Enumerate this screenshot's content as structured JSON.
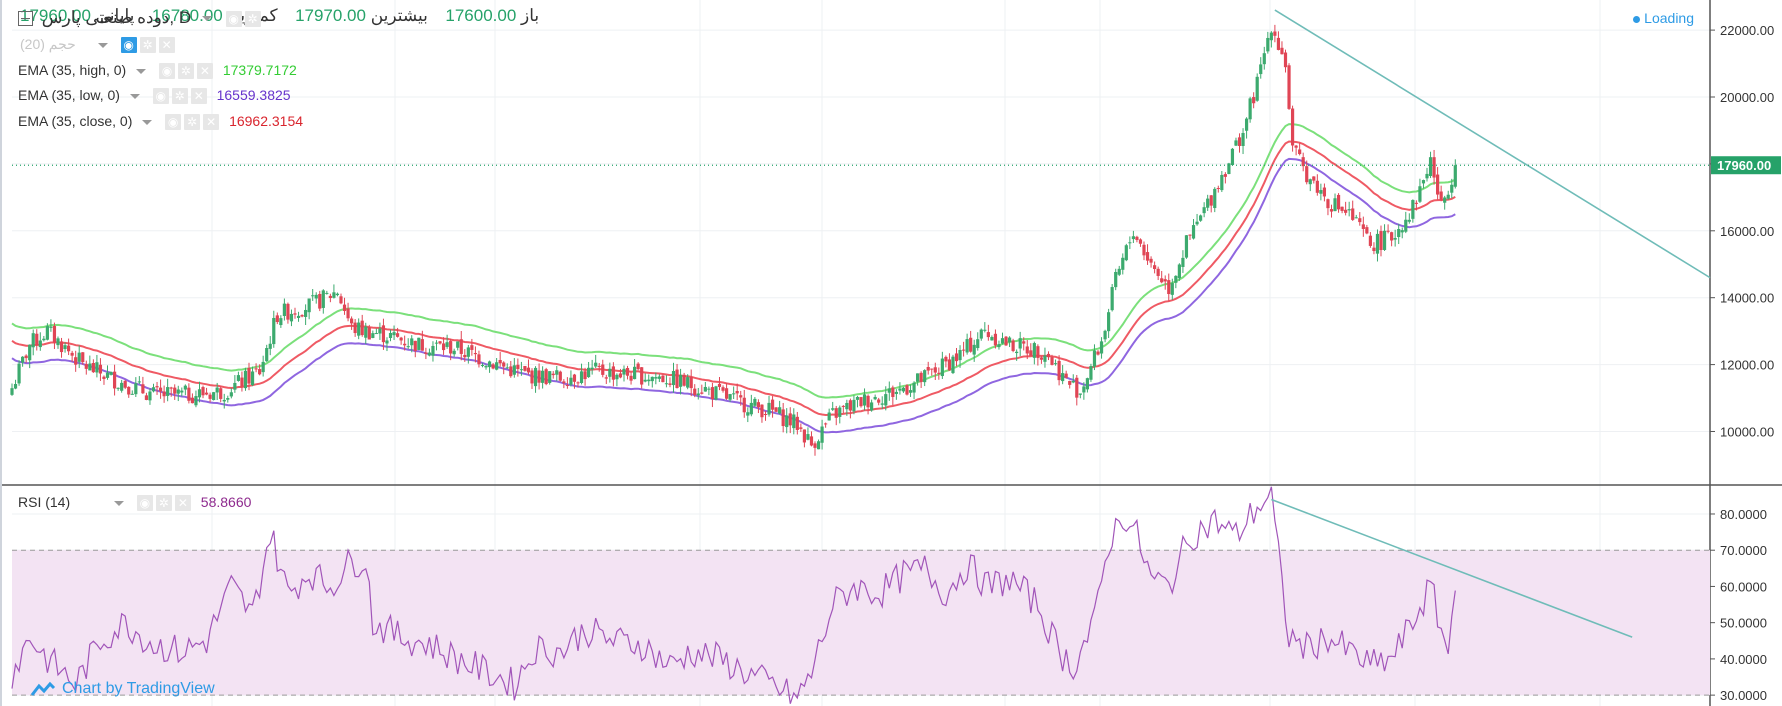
{
  "header": {
    "symbol": "دوده صنعتی پارس",
    "interval": "D",
    "open_label": "باز",
    "open": "17600.00",
    "high_label": "بیشترین",
    "high": "17970.00",
    "low_label": "کمترین",
    "low": "16780.00",
    "close_label": "پایانی",
    "close": "17960.00",
    "loading": "Loading"
  },
  "legends": {
    "volume": "حجم (20)",
    "ema_high": {
      "label": "EMA (35, high, 0)",
      "value": "17379.7172",
      "color": "#33cc33"
    },
    "ema_low": {
      "label": "EMA (35, low, 0)",
      "value": "16559.3825",
      "color": "#6633cc"
    },
    "ema_close": {
      "label": "EMA (35, close, 0)",
      "value": "16962.3154",
      "color": "#d9252e"
    },
    "rsi": {
      "label": "RSI (14)",
      "value": "58.8660",
      "color": "#8e2a8e"
    }
  },
  "credit": "Chart by TradingView",
  "colors": {
    "up": "#3caa6e",
    "down": "#e04555",
    "ema_high": "#7be07b",
    "ema_close": "#ef5a64",
    "ema_low": "#8f66e0",
    "rsi_line": "#a155b9",
    "rsi_band": "#f3e3f3",
    "trendline": "#6fbcb8",
    "price_line": "#26a269"
  },
  "chart_data": [
    {
      "type": "candlestick",
      "title": "دوده صنعتی پارس, D",
      "ylim": [
        8400,
        22900
      ],
      "y_ticks": [
        "10000.00",
        "12000.00",
        "14000.00",
        "16000.00",
        "18000.00",
        "20000.00",
        "22000.00"
      ],
      "last_price_label": "17960.00",
      "last_price": 17960,
      "close_anchors": [
        [
          0,
          11300
        ],
        [
          5,
          12600
        ],
        [
          10,
          13000
        ],
        [
          20,
          12000
        ],
        [
          30,
          11500
        ],
        [
          40,
          11100
        ],
        [
          50,
          11100
        ],
        [
          60,
          11200
        ],
        [
          70,
          11800
        ],
        [
          75,
          13500
        ],
        [
          85,
          13800
        ],
        [
          92,
          14200
        ],
        [
          96,
          13100
        ],
        [
          105,
          12900
        ],
        [
          115,
          12600
        ],
        [
          125,
          12500
        ],
        [
          135,
          12100
        ],
        [
          145,
          11700
        ],
        [
          155,
          11600
        ],
        [
          165,
          11800
        ],
        [
          175,
          11700
        ],
        [
          185,
          11600
        ],
        [
          195,
          11300
        ],
        [
          205,
          10900
        ],
        [
          215,
          10600
        ],
        [
          222,
          10200
        ],
        [
          226,
          9600
        ],
        [
          232,
          10500
        ],
        [
          240,
          10900
        ],
        [
          250,
          11200
        ],
        [
          258,
          11600
        ],
        [
          268,
          12300
        ],
        [
          275,
          13000
        ],
        [
          282,
          12600
        ],
        [
          292,
          12400
        ],
        [
          298,
          11500
        ],
        [
          302,
          11200
        ],
        [
          308,
          12700
        ],
        [
          312,
          14500
        ],
        [
          317,
          16000
        ],
        [
          322,
          15000
        ],
        [
          327,
          14300
        ],
        [
          332,
          15600
        ],
        [
          338,
          16800
        ],
        [
          344,
          18100
        ],
        [
          348,
          19000
        ],
        [
          352,
          20400
        ],
        [
          356,
          22200
        ],
        [
          360,
          21000
        ],
        [
          362,
          18400
        ],
        [
          366,
          17700
        ],
        [
          372,
          16900
        ],
        [
          378,
          16500
        ],
        [
          384,
          15600
        ],
        [
          390,
          15800
        ],
        [
          396,
          16700
        ],
        [
          401,
          18100
        ],
        [
          404,
          16700
        ],
        [
          408,
          17960
        ]
      ],
      "ema": {
        "period": 35,
        "series": [
          "EMA high",
          "EMA close",
          "EMA low"
        ],
        "last_values": [
          17379.7172,
          16962.3154,
          16559.3825
        ]
      },
      "trendline": {
        "from": [
          357,
          22600
        ],
        "to": [
          480,
          14600
        ]
      }
    },
    {
      "type": "line",
      "title": "RSI (14)",
      "ylim": [
        27,
        88
      ],
      "y_ticks": [
        "30.0000",
        "40.0000",
        "50.0000",
        "60.0000",
        "70.0000",
        "80.0000"
      ],
      "band": [
        30,
        70
      ],
      "last_value": 58.866,
      "rsi_anchors": [
        [
          0,
          36
        ],
        [
          5,
          46
        ],
        [
          10,
          40
        ],
        [
          18,
          33
        ],
        [
          25,
          45
        ],
        [
          32,
          50
        ],
        [
          40,
          44
        ],
        [
          48,
          42
        ],
        [
          55,
          45
        ],
        [
          62,
          60
        ],
        [
          68,
          52
        ],
        [
          73,
          75
        ],
        [
          78,
          58
        ],
        [
          84,
          64
        ],
        [
          90,
          60
        ],
        [
          95,
          66
        ],
        [
          100,
          68
        ],
        [
          102,
          50
        ],
        [
          110,
          46
        ],
        [
          118,
          44
        ],
        [
          126,
          40
        ],
        [
          135,
          36
        ],
        [
          142,
          33
        ],
        [
          148,
          43
        ],
        [
          155,
          42
        ],
        [
          162,
          48
        ],
        [
          170,
          45
        ],
        [
          178,
          44
        ],
        [
          186,
          38
        ],
        [
          192,
          42
        ],
        [
          200,
          40
        ],
        [
          208,
          36
        ],
        [
          216,
          32
        ],
        [
          222,
          29
        ],
        [
          226,
          36
        ],
        [
          232,
          55
        ],
        [
          238,
          60
        ],
        [
          245,
          58
        ],
        [
          252,
          63
        ],
        [
          258,
          65
        ],
        [
          264,
          58
        ],
        [
          270,
          66
        ],
        [
          276,
          60
        ],
        [
          282,
          62
        ],
        [
          290,
          55
        ],
        [
          296,
          42
        ],
        [
          300,
          38
        ],
        [
          306,
          50
        ],
        [
          310,
          72
        ],
        [
          314,
          80
        ],
        [
          318,
          74
        ],
        [
          322,
          62
        ],
        [
          327,
          60
        ],
        [
          333,
          74
        ],
        [
          340,
          78
        ],
        [
          346,
          74
        ],
        [
          352,
          82
        ],
        [
          356,
          85
        ],
        [
          359,
          60
        ],
        [
          361,
          46
        ],
        [
          366,
          43
        ],
        [
          372,
          46
        ],
        [
          378,
          42
        ],
        [
          384,
          38
        ],
        [
          390,
          40
        ],
        [
          396,
          50
        ],
        [
          401,
          60
        ],
        [
          404,
          48
        ],
        [
          406,
          42
        ],
        [
          408,
          58.866
        ]
      ],
      "trendline": {
        "from": [
          356,
          84
        ],
        "to": [
          458,
          46
        ]
      }
    }
  ]
}
